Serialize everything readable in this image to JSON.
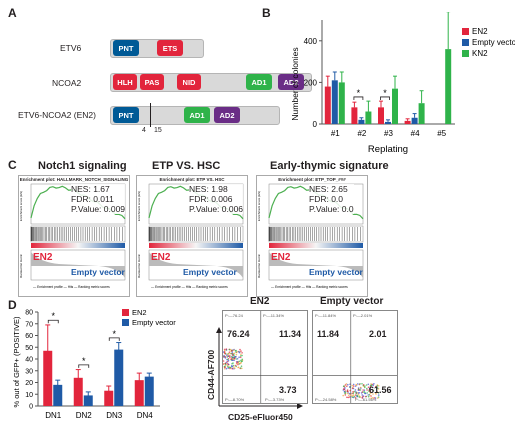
{
  "panels": {
    "A": "A",
    "B": "B",
    "C": "C",
    "D": "D"
  },
  "panelA": {
    "proteins": [
      {
        "name": "ETV6"
      },
      {
        "name": "NCOA2"
      },
      {
        "name": "ETV6-NCOA2 (EN2)"
      }
    ],
    "domains": {
      "pnt": "PNT",
      "ets": "ETS",
      "hlh": "HLH",
      "pas": "PAS",
      "nid": "NID",
      "ad1": "AD1",
      "ad2": "AD2"
    },
    "exon_labels": [
      "4",
      "15"
    ],
    "colors": {
      "pnt": "#005a96",
      "red": "#e2253c",
      "ad1": "#2fb34a",
      "ad2": "#6a2d86",
      "backbone": "#d9d9d9"
    }
  },
  "chart_data": [
    {
      "type": "bar",
      "panel": "B",
      "categories": [
        "#1",
        "#2",
        "#3",
        "#4",
        "#5"
      ],
      "xlabel": "Replating",
      "ylabel": "Number of colonies",
      "ylim": [
        0,
        500
      ],
      "yticks": [
        0,
        200,
        400
      ],
      "series": [
        {
          "name": "EN2",
          "color": "#e2253c",
          "values": [
            180,
            80,
            80,
            15,
            0
          ],
          "errors": [
            50,
            25,
            30,
            10,
            0
          ]
        },
        {
          "name": "Empty vector",
          "color": "#1f5aa6",
          "values": [
            210,
            20,
            10,
            30,
            0
          ],
          "errors": [
            40,
            10,
            10,
            20,
            0
          ]
        },
        {
          "name": "KN2",
          "color": "#2fb34a",
          "values": [
            200,
            60,
            170,
            100,
            360
          ],
          "errors": [
            50,
            50,
            60,
            60,
            180
          ]
        }
      ],
      "significance": [
        {
          "category": "#2",
          "label": "*"
        },
        {
          "category": "#3",
          "label": "*"
        }
      ],
      "legend": "right"
    },
    {
      "type": "bar",
      "panel": "D",
      "categories": [
        "DN1",
        "DN2",
        "DN3",
        "DN4"
      ],
      "ylabel": "% out of GFP+ (POSITIVE)",
      "ylim": [
        0,
        80
      ],
      "yticks": [
        0,
        10,
        20,
        30,
        40,
        50,
        60,
        70,
        80
      ],
      "series": [
        {
          "name": "EN2",
          "color": "#e2253c",
          "values": [
            47,
            24,
            13,
            22
          ],
          "errors": [
            22,
            7,
            4,
            6
          ]
        },
        {
          "name": "Empty vector",
          "color": "#1f5aa6",
          "values": [
            18,
            9,
            48,
            25
          ],
          "errors": [
            4,
            3,
            6,
            3
          ]
        }
      ],
      "significance": [
        {
          "category": "DN1",
          "label": "*"
        },
        {
          "category": "DN2",
          "label": "*"
        },
        {
          "category": "DN3",
          "label": "*"
        }
      ],
      "legend": "top-right"
    }
  ],
  "panelC": {
    "plots": [
      {
        "title": "Notch1 signaling",
        "header": "Enrichment plot: HALLMARK_NOTCH_SIGNALING",
        "nes": "NES: 1.67",
        "fdr": "FDR: 0.011",
        "p": "P.Value: 0.009"
      },
      {
        "title": "ETP VS. HSC",
        "header": "Enrichment plot: ETP VS. HSC",
        "nes": "NES: 1.98",
        "fdr": "FDR: 0.006",
        "p": "P.Value: 0.006"
      },
      {
        "title": "Early-thymic signature",
        "header": "Enrichment plot: ETP_TOP_###",
        "nes": "NES: 2.65",
        "fdr": "FDR: 0.0",
        "p": "P.Value: 0.0"
      }
    ],
    "label_en2": "EN2",
    "label_empty": "Empty vector",
    "mini_y1": "Enrichment score (ES)",
    "mini_y2": "Ranked list metric",
    "legend_small": "— Enrichment profile  — Hits  — Ranking metric scores"
  },
  "panelD_flow": {
    "ylabel": "CD44-AF700",
    "xlabel": "CD25-eFluor450",
    "plots": [
      {
        "title": "EN2",
        "q_ul": "76.24",
        "q_ur": "11.34",
        "q_lr": "3.73",
        "q_ll": "",
        "tiny_ul": "P:—76.24",
        "tiny_ur": "P:—11.34%",
        "tiny_ll": "P:—8.70%",
        "tiny_lr": "P:—3.73%"
      },
      {
        "title": "Empty vector",
        "q_ul": "11.84",
        "q_ur": "2.01",
        "q_lr": "61.56",
        "q_ll": "",
        "tiny_ul": "P:—11.84%",
        "tiny_ur": "P:—2.01%",
        "tiny_ll": "P:—24.58%",
        "tiny_lr": "P:—61.56%"
      }
    ]
  }
}
